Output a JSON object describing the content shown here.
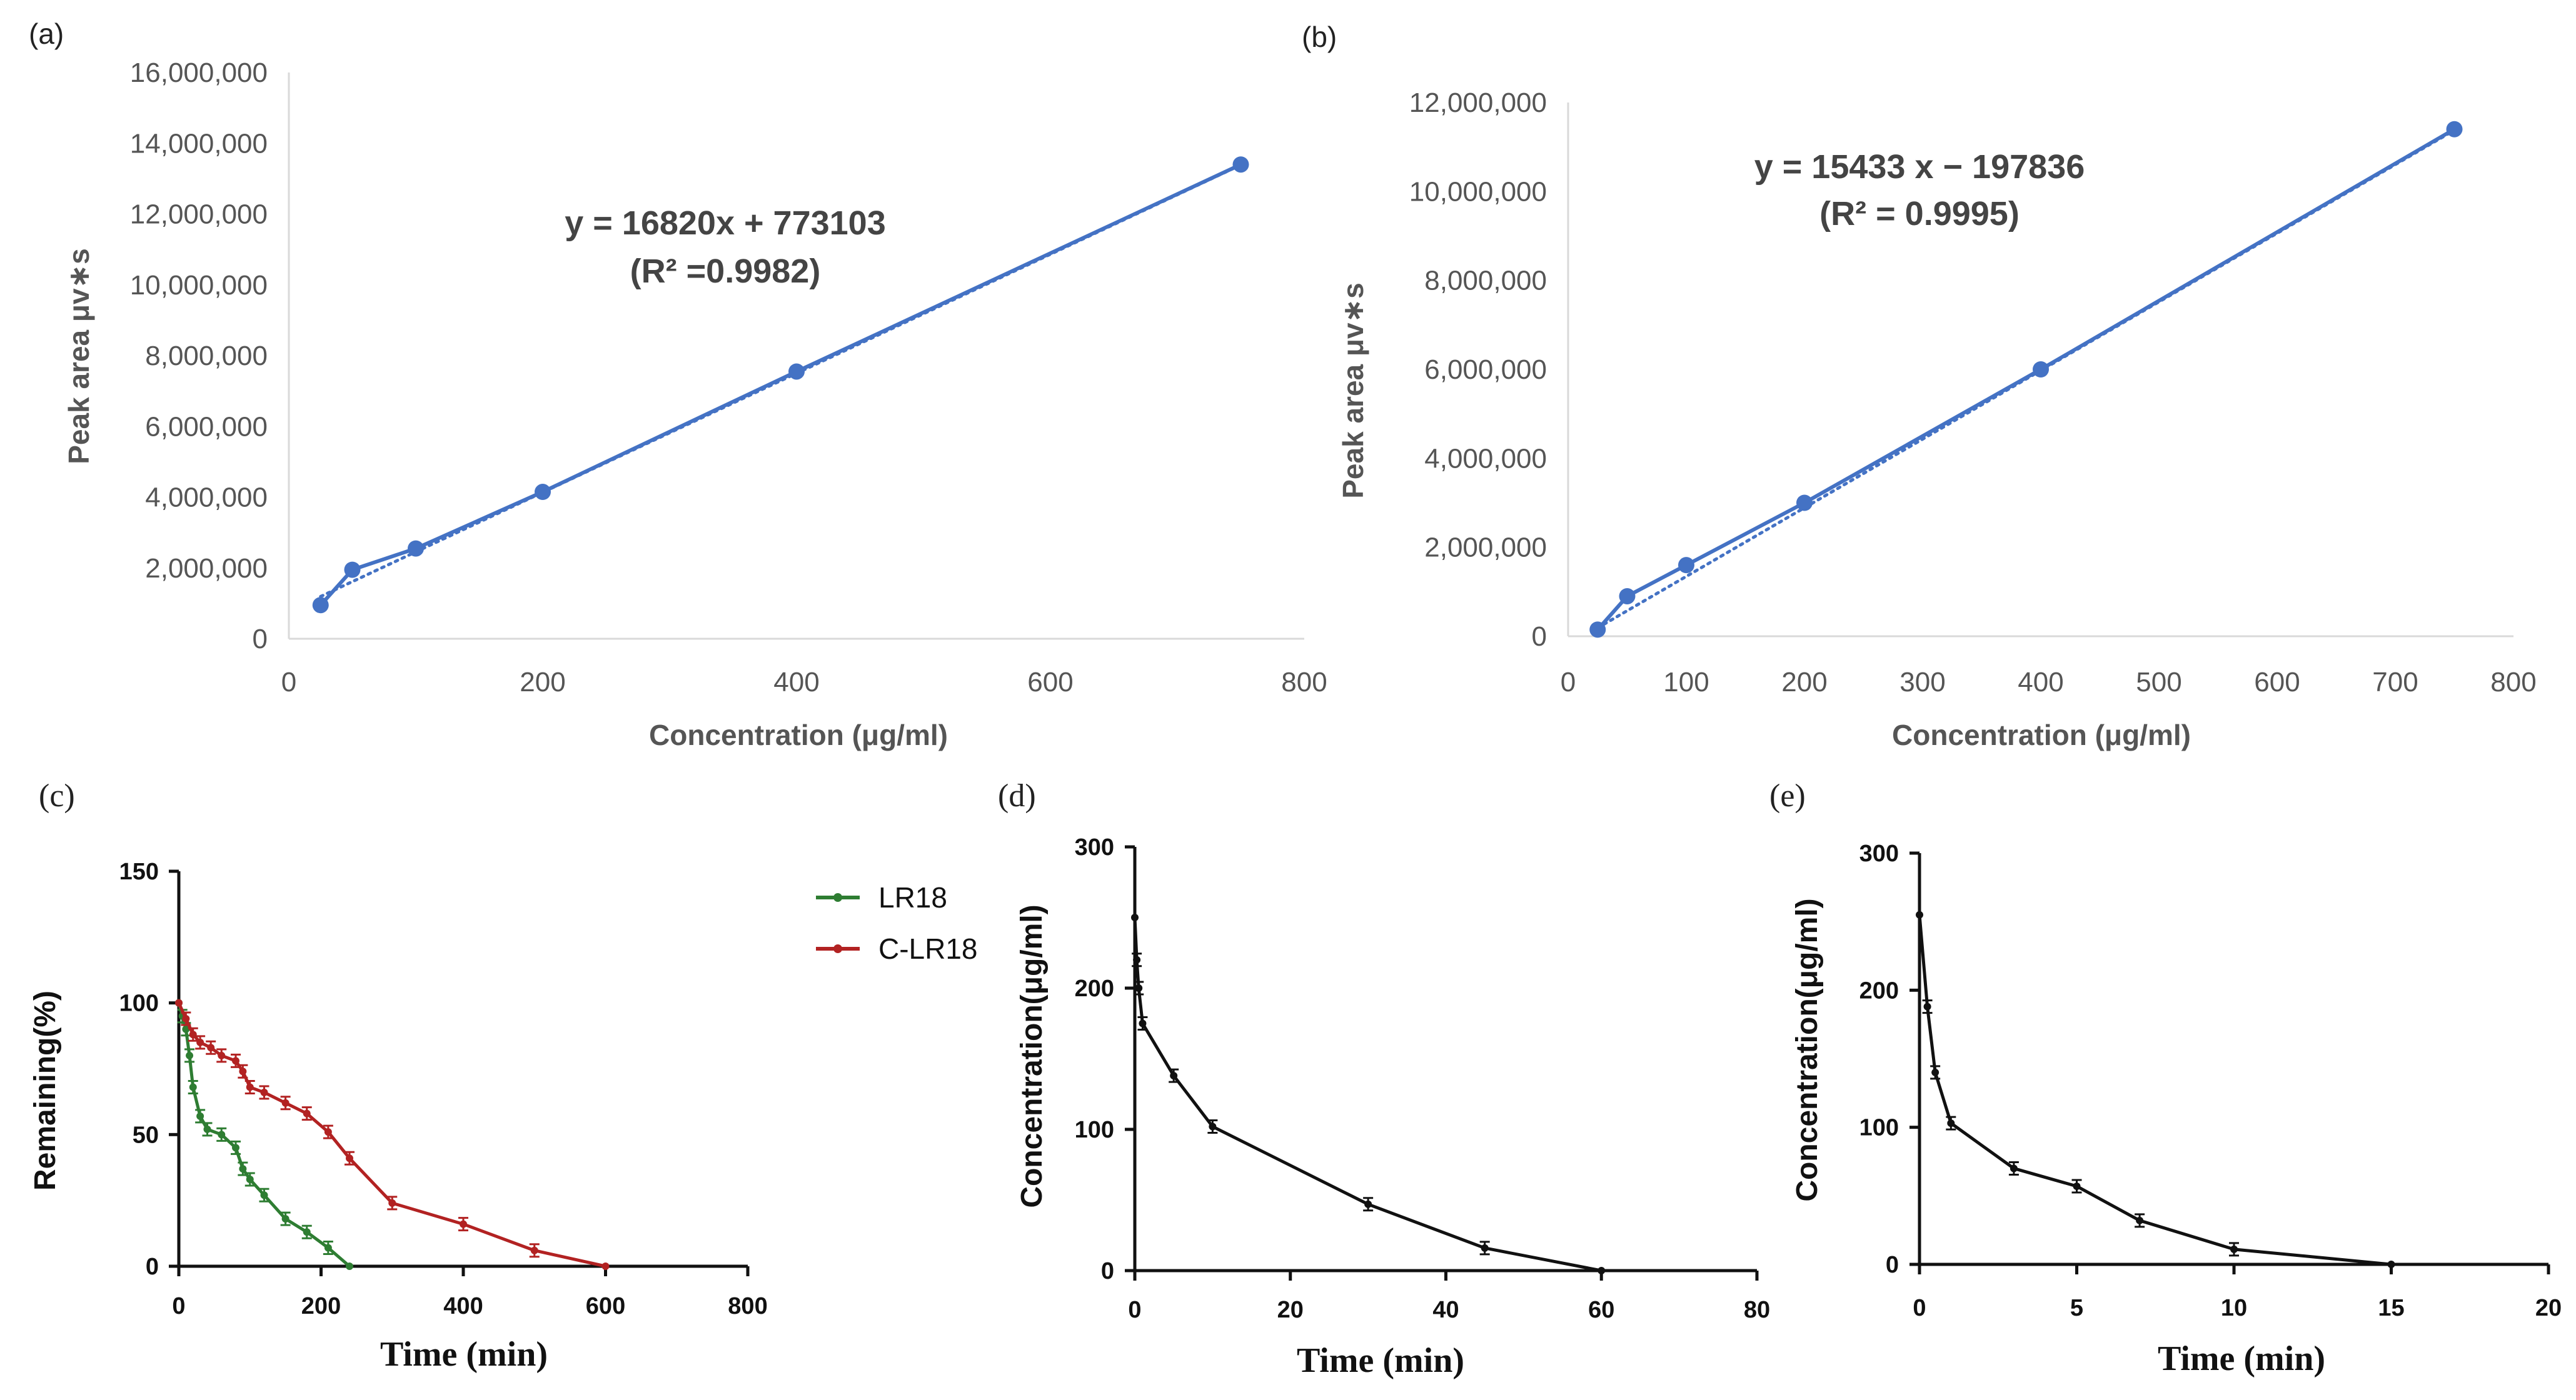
{
  "chart_data": [
    {
      "panel": "(a)",
      "type": "scatter",
      "xlabel": "Concentration (μg/ml)",
      "ylabel": "Peak area μv∗s",
      "xlim": [
        0,
        800
      ],
      "ylim": [
        0,
        16000000
      ],
      "xticks": [
        0,
        200,
        400,
        600,
        800
      ],
      "xtick_labels": [
        "0",
        "200",
        "400",
        "600",
        "800"
      ],
      "yticks": [
        0,
        2000000,
        4000000,
        6000000,
        8000000,
        10000000,
        12000000,
        14000000,
        16000000
      ],
      "ytick_labels": [
        "0",
        "2,000,000",
        "4,000,000",
        "6,000,000",
        "8,000,000",
        "10,000,000",
        "12,000,000",
        "14,000,000",
        "16,000,000"
      ],
      "x": [
        25,
        50,
        100,
        200,
        400,
        750
      ],
      "y": [
        950000,
        1950000,
        2550000,
        4150000,
        7550000,
        13400000
      ],
      "trendline": {
        "slope": 16820,
        "intercept": 773103,
        "style": "dotted"
      },
      "equation": "y = 16820x + 773103",
      "r2_label": "(R² =0.9982)",
      "color": "#4472C4"
    },
    {
      "panel": "(b)",
      "type": "scatter",
      "xlabel": "Concentration (μg/ml)",
      "ylabel": "Peak area μv∗s",
      "xlim": [
        0,
        800
      ],
      "ylim": [
        0,
        12000000
      ],
      "xticks": [
        0,
        100,
        200,
        300,
        400,
        500,
        600,
        700,
        800
      ],
      "xtick_labels": [
        "0",
        "100",
        "200",
        "300",
        "400",
        "500",
        "600",
        "700",
        "800"
      ],
      "yticks": [
        0,
        2000000,
        4000000,
        6000000,
        8000000,
        10000000,
        12000000
      ],
      "ytick_labels": [
        "0",
        "2,000,000",
        "4,000,000",
        "6,000,000",
        "8,000,000",
        "10,000,000",
        "12,000,000"
      ],
      "x": [
        25,
        50,
        100,
        200,
        400,
        750
      ],
      "y": [
        150000,
        900000,
        1600000,
        3000000,
        6000000,
        11400000
      ],
      "trendline": {
        "slope": 15433,
        "intercept": -197836,
        "style": "dotted"
      },
      "equation": "y = 15433 x − 197836",
      "r2_label": "(R² = 0.9995)",
      "color": "#4472C4"
    },
    {
      "panel": "(c)",
      "type": "line",
      "xlabel": "Time (min)",
      "ylabel": "Remaining(%)",
      "xlim": [
        0,
        800
      ],
      "ylim": [
        0,
        150
      ],
      "xticks": [
        0,
        200,
        400,
        600,
        800
      ],
      "xtick_labels": [
        "0",
        "200",
        "400",
        "600",
        "800"
      ],
      "yticks": [
        0,
        50,
        100,
        150
      ],
      "ytick_labels": [
        "0",
        "50",
        "100",
        "150"
      ],
      "series": [
        {
          "name": "LR18",
          "color": "#2E7D32",
          "x": [
            0,
            5,
            10,
            15,
            20,
            30,
            40,
            60,
            80,
            90,
            100,
            120,
            150,
            180,
            210,
            240
          ],
          "y": [
            100,
            95,
            90,
            80,
            68,
            57,
            52,
            50,
            45,
            37,
            33,
            27,
            18,
            13,
            7,
            0
          ]
        },
        {
          "name": "C-LR18",
          "color": "#B22222",
          "x": [
            0,
            10,
            20,
            30,
            45,
            60,
            80,
            90,
            100,
            120,
            150,
            180,
            210,
            240,
            300,
            400,
            500,
            600
          ],
          "y": [
            100,
            94,
            88,
            85,
            83,
            80,
            78,
            74,
            68,
            66,
            62,
            58,
            51,
            41,
            24,
            16,
            6,
            0
          ]
        }
      ]
    },
    {
      "panel": "(d)",
      "type": "line",
      "xlabel": "Time (min)",
      "ylabel": "Concentration(μg/ml)",
      "xlim": [
        0,
        80
      ],
      "ylim": [
        0,
        300
      ],
      "xticks": [
        0,
        20,
        40,
        60,
        80
      ],
      "xtick_labels": [
        "0",
        "20",
        "40",
        "60",
        "80"
      ],
      "yticks": [
        0,
        100,
        200,
        300
      ],
      "ytick_labels": [
        "0",
        "100",
        "200",
        "300"
      ],
      "series": [
        {
          "name": "Concentration",
          "color": "#111111",
          "x": [
            0,
            0.25,
            0.5,
            1,
            5,
            10,
            30,
            45,
            60
          ],
          "y": [
            250,
            220,
            200,
            175,
            138,
            102,
            47,
            16,
            0
          ]
        }
      ]
    },
    {
      "panel": "(e)",
      "type": "line",
      "xlabel": "Time (min)",
      "ylabel": "Concentration(μg/ml)",
      "xlim": [
        0,
        20
      ],
      "ylim": [
        0,
        300
      ],
      "xticks": [
        0,
        5,
        10,
        15,
        20
      ],
      "xtick_labels": [
        "0",
        "5",
        "10",
        "15",
        "20"
      ],
      "yticks": [
        0,
        100,
        200,
        300
      ],
      "ytick_labels": [
        "0",
        "100",
        "200",
        "300"
      ],
      "series": [
        {
          "name": "Concentration",
          "color": "#111111",
          "x": [
            0,
            0.25,
            0.5,
            1,
            3,
            5,
            7,
            10,
            15
          ],
          "y": [
            255,
            188,
            140,
            103,
            70,
            57,
            32,
            11,
            0
          ]
        }
      ]
    }
  ]
}
